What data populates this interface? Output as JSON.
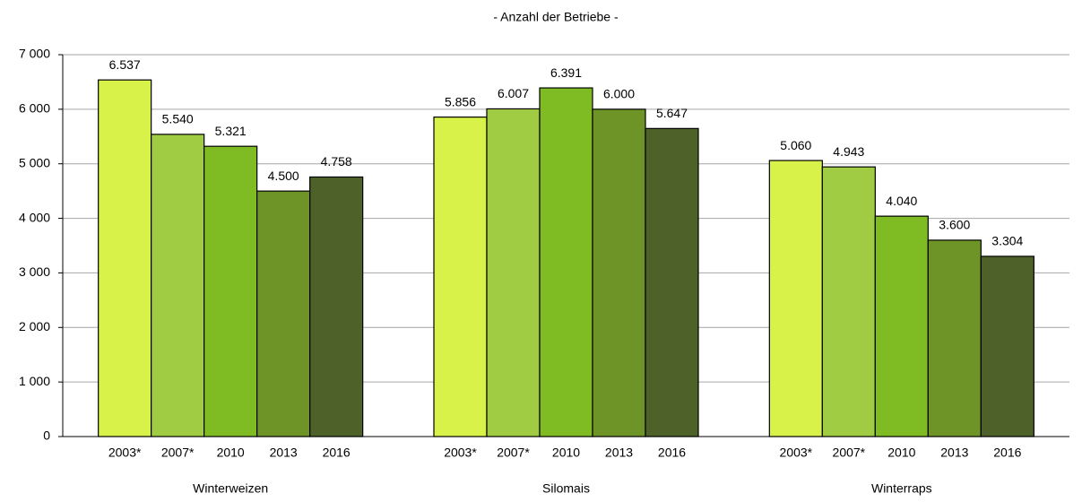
{
  "chart_data": {
    "type": "bar",
    "title": "- Anzahl der Betriebe -",
    "categories": [
      "Winterweizen",
      "Silomais",
      "Winterraps"
    ],
    "series": [
      {
        "name": "2003*",
        "color": "#d9f24a",
        "values": [
          6537,
          5856,
          5060
        ],
        "value_labels": [
          "6.537",
          "5.856",
          "5.060"
        ]
      },
      {
        "name": "2007*",
        "color": "#a0cc44",
        "values": [
          5540,
          6007,
          4943
        ],
        "value_labels": [
          "5.540",
          "6.007",
          "4.943"
        ]
      },
      {
        "name": "2010",
        "color": "#7fbb22",
        "values": [
          5321,
          6391,
          4040
        ],
        "value_labels": [
          "5.321",
          "6.391",
          "4.040"
        ]
      },
      {
        "name": "2013",
        "color": "#6e9428",
        "values": [
          4500,
          6000,
          3600
        ],
        "value_labels": [
          "4.500",
          "6.000",
          "3.600"
        ]
      },
      {
        "name": "2016",
        "color": "#4d6128",
        "values": [
          4758,
          5647,
          3304
        ],
        "value_labels": [
          "4.758",
          "5.647",
          "3.304"
        ]
      }
    ],
    "ylim": [
      0,
      7000
    ],
    "yticks": [
      0,
      {
        "value": 1000,
        "label": "1 000"
      },
      {
        "value": 2000,
        "label": "2 000"
      },
      {
        "value": 3000,
        "label": "3 000"
      },
      {
        "value": 4000,
        "label": "4 000"
      },
      {
        "value": 5000,
        "label": "5 000"
      },
      {
        "value": 6000,
        "label": "6 000"
      },
      {
        "value": 7000,
        "label": "7 000"
      }
    ],
    "grid": true
  }
}
